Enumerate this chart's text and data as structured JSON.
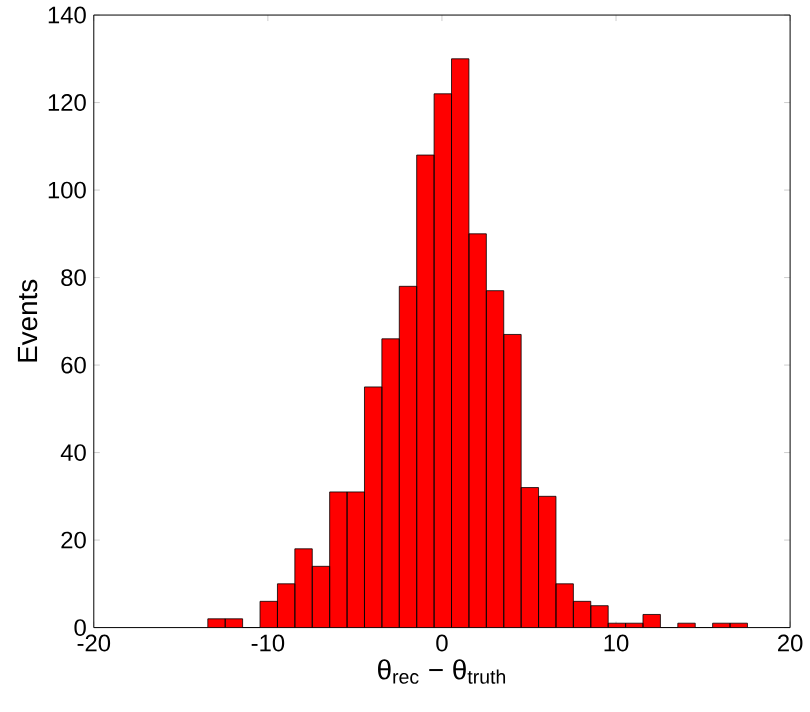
{
  "chart_data": {
    "type": "histogram",
    "xlabel": "θ$_{rec}$ − θ$_{truth}$",
    "ylabel": "Events",
    "color": "#ff0000",
    "bins": [
      -13.45,
      -12.45,
      -11.45,
      -10.45,
      -9.45,
      -8.45,
      -7.45,
      -6.45,
      -5.45,
      -4.45,
      -3.45,
      -2.45,
      -1.45,
      -0.45,
      0.55,
      1.55,
      2.55,
      3.55,
      4.55,
      5.55,
      6.55,
      7.55,
      8.55,
      9.55,
      10.55,
      11.55,
      12.55,
      13.55,
      14.55,
      15.55,
      16.55,
      17.55
    ],
    "values": [
      2,
      2,
      0,
      6,
      10,
      18,
      14,
      31,
      31,
      55,
      66,
      78,
      108,
      122,
      130,
      90,
      77,
      67,
      32,
      30,
      10,
      6,
      5,
      1,
      1,
      3,
      0,
      1,
      0,
      1,
      1
    ],
    "xlim": [
      -20,
      20
    ],
    "ylim": [
      0,
      140
    ],
    "xticks": [
      -20,
      -10,
      0,
      10,
      20
    ],
    "yticks": [
      0,
      20,
      40,
      60,
      80,
      100,
      120,
      140
    ],
    "grid": false
  }
}
